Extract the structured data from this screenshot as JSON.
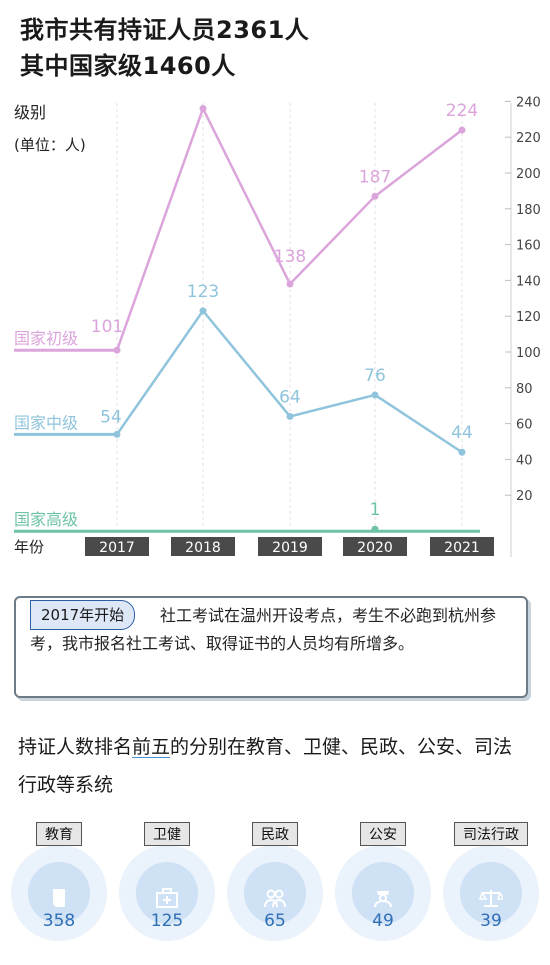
{
  "headline": {
    "line1": "我市共有持证人员2361人",
    "line2": "其中国家级1460人"
  },
  "chart_data": {
    "type": "line",
    "ylabel": "级别",
    "yunit": "(单位：人)",
    "xlabel": "年份",
    "x": [
      "2017",
      "2018",
      "2019",
      "2020",
      "2021"
    ],
    "ylim": [
      0,
      240
    ],
    "yticks": [
      20,
      40,
      60,
      80,
      100,
      120,
      140,
      160,
      180,
      200,
      220,
      240
    ],
    "grid": "vertical dashed",
    "series": [
      {
        "name": "国家初级",
        "values": [
          101,
          236,
          138,
          187,
          224
        ],
        "color": "#dba5dc"
      },
      {
        "name": "国家中级",
        "values": [
          54,
          123,
          64,
          76,
          44
        ],
        "color": "#8fc4dc"
      },
      {
        "name": "国家高级",
        "values": [
          null,
          null,
          null,
          1,
          null
        ],
        "color": "#6ec3a6"
      }
    ]
  },
  "note": {
    "tag": "2017年开始",
    "text": "社工考试在温州开设考点，考生不必跑到杭州参考，我市报名社工考试、取得证书的人员均有所增多。"
  },
  "summary": {
    "pre": "持证人数排名",
    "em": "前五",
    "post": "的分别在教育、卫健、民政、公安、司法行政等系统"
  },
  "sectors": [
    {
      "label": "教育",
      "value": "358",
      "icon": "book-icon"
    },
    {
      "label": "卫健",
      "value": "125",
      "icon": "medical-kit-icon"
    },
    {
      "label": "民政",
      "value": "65",
      "icon": "people-icon"
    },
    {
      "label": "公安",
      "value": "49",
      "icon": "police-icon"
    },
    {
      "label": "司法行政",
      "value": "39",
      "icon": "scales-icon"
    }
  ]
}
